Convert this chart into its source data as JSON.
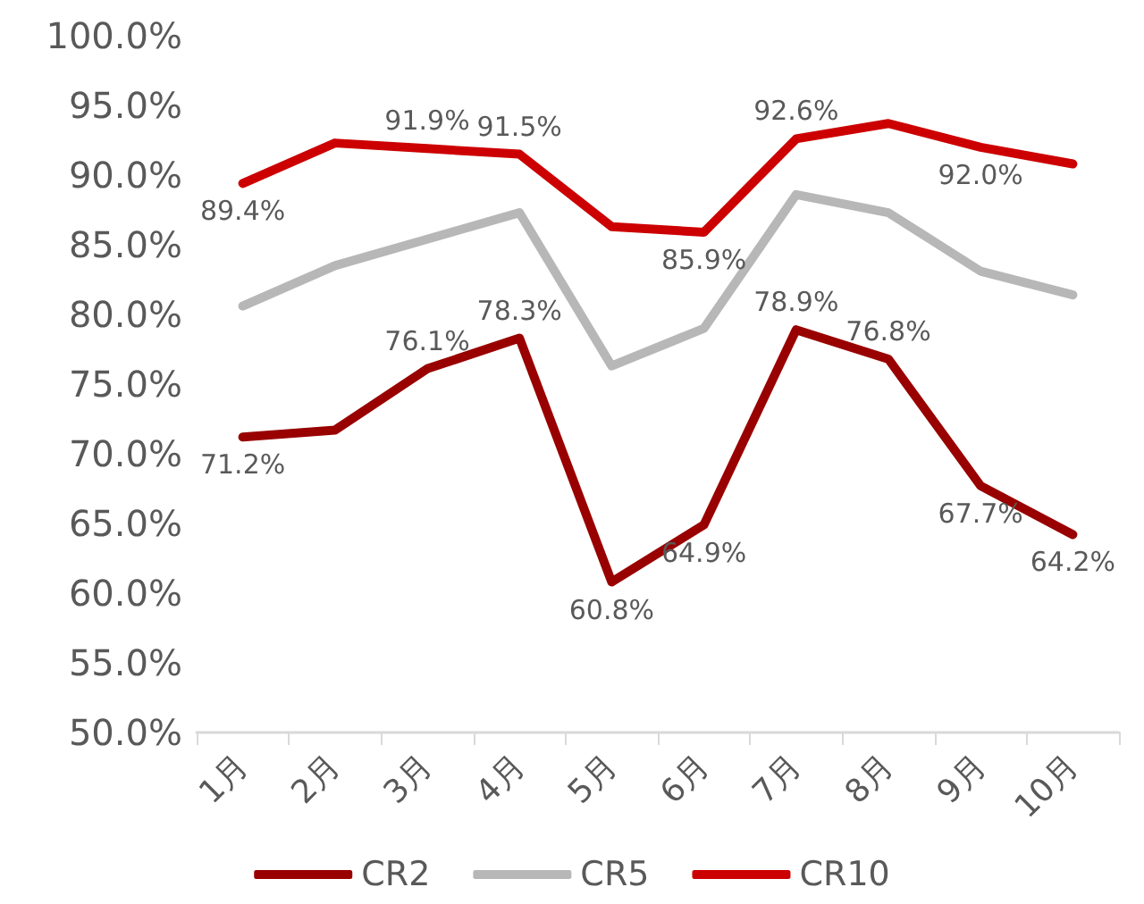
{
  "chart_data": {
    "type": "line",
    "categories": [
      "1月",
      "2月",
      "3月",
      "4月",
      "5月",
      "6月",
      "7月",
      "8月",
      "9月",
      "10月"
    ],
    "series": [
      {
        "name": "CR2",
        "color": "#990000",
        "values": [
          71.2,
          71.7,
          76.1,
          78.3,
          60.8,
          64.9,
          78.9,
          76.8,
          67.7,
          64.2
        ],
        "value_labels": [
          "71.2%",
          null,
          "76.1%",
          "78.3%",
          "60.8%",
          "64.9%",
          "78.9%",
          "76.8%",
          "67.7%",
          "64.2%"
        ]
      },
      {
        "name": "CR5",
        "color": "#b7b7b7",
        "values": [
          80.6,
          83.5,
          85.4,
          87.3,
          76.3,
          79.0,
          88.6,
          87.3,
          83.1,
          81.4
        ]
      },
      {
        "name": "CR10",
        "color": "#cc0000",
        "values": [
          89.4,
          92.3,
          91.9,
          91.5,
          86.3,
          85.9,
          92.6,
          93.7,
          92.0,
          90.8
        ],
        "value_labels": [
          "89.4%",
          null,
          "91.9%",
          "91.5%",
          null,
          "85.9%",
          "92.6%",
          null,
          "92.0%",
          null
        ]
      }
    ],
    "ylim": [
      50,
      100
    ],
    "yticks": [
      {
        "value": 50,
        "label": "50.0%"
      },
      {
        "value": 55,
        "label": "55.0%"
      },
      {
        "value": 60,
        "label": "60.0%"
      },
      {
        "value": 65,
        "label": "65.0%"
      },
      {
        "value": 70,
        "label": "70.0%"
      },
      {
        "value": 75,
        "label": "75.0%"
      },
      {
        "value": 80,
        "label": "80.0%"
      },
      {
        "value": 85,
        "label": "85.0%"
      },
      {
        "value": 90,
        "label": "90.0%"
      },
      {
        "value": 95,
        "label": "95.0%"
      },
      {
        "value": 100,
        "label": "100.0%"
      }
    ],
    "grid": false,
    "legend": "bottom",
    "marker": "none",
    "line_style": "solid"
  }
}
